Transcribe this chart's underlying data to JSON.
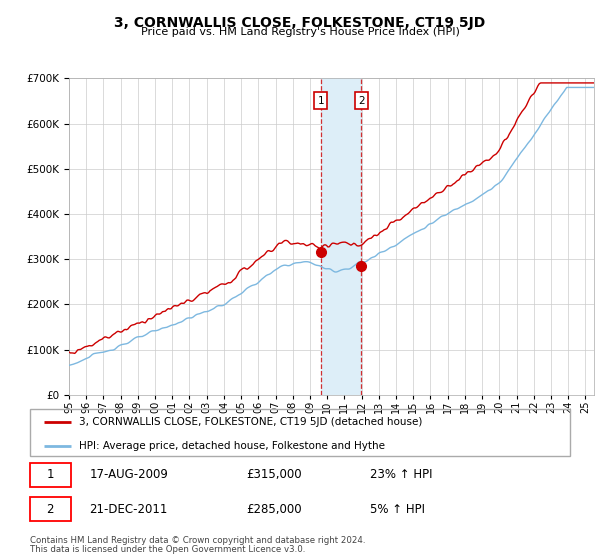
{
  "title": "3, CORNWALLIS CLOSE, FOLKESTONE, CT19 5JD",
  "subtitle": "Price paid vs. HM Land Registry's House Price Index (HPI)",
  "ylim": [
    0,
    700000
  ],
  "xlim_start": 1995,
  "xlim_end": 2025.5,
  "hpi_color": "#7db8e0",
  "price_color": "#cc0000",
  "shade_color": "#ddeef8",
  "transaction1_date": 2009.63,
  "transaction1_price": 315000,
  "transaction1_label": "1",
  "transaction1_text": "17-AUG-2009",
  "transaction1_price_str": "£315,000",
  "transaction1_pct": "23% ↑ HPI",
  "transaction2_date": 2011.97,
  "transaction2_price": 285000,
  "transaction2_label": "2",
  "transaction2_text": "21-DEC-2011",
  "transaction2_price_str": "£285,000",
  "transaction2_pct": "5% ↑ HPI",
  "legend_line1": "3, CORNWALLIS CLOSE, FOLKESTONE, CT19 5JD (detached house)",
  "legend_line2": "HPI: Average price, detached house, Folkestone and Hythe",
  "footer1": "Contains HM Land Registry data © Crown copyright and database right 2024.",
  "footer2": "This data is licensed under the Open Government Licence v3.0."
}
